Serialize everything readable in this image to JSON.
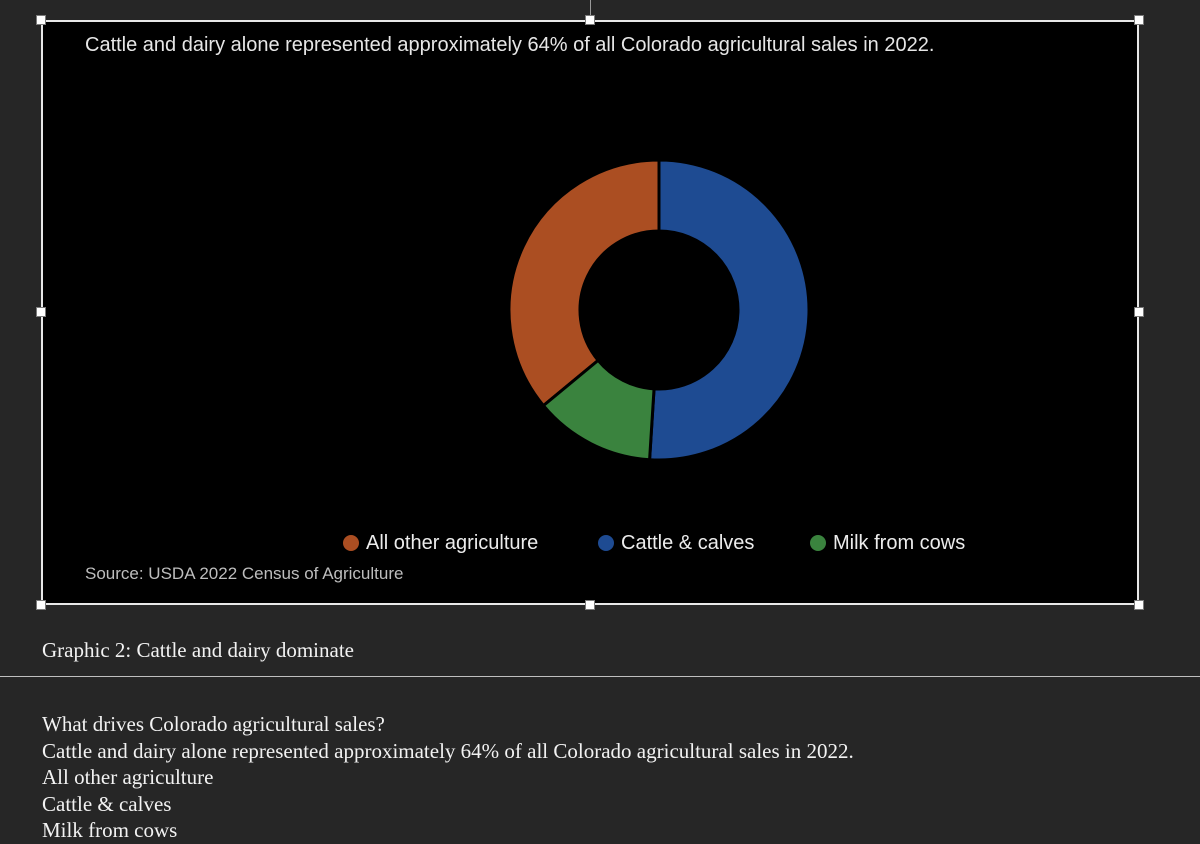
{
  "chart_block": {
    "heading": "Cattle and dairy alone represented approximately 64% of all Colorado agricultural sales in 2022.",
    "source": "Source: USDA 2022 Census of Agriculture"
  },
  "chart_data": {
    "type": "pie",
    "style": "donut",
    "title": "Cattle and dairy alone represented approximately 64% of all Colorado agricultural sales in 2022.",
    "categories": [
      "All other agriculture",
      "Cattle & calves",
      "Milk from cows"
    ],
    "values": [
      36,
      51,
      13
    ],
    "colors": [
      "#ab4e22",
      "#1e4b92",
      "#3a833e"
    ],
    "legend_position": "bottom",
    "legend": [
      {
        "label": "All other agriculture",
        "color": "#ab4e22"
      },
      {
        "label": "Cattle & calves",
        "color": "#1e4b92"
      },
      {
        "label": "Milk from cows",
        "color": "#3a833e"
      }
    ],
    "source": "Source: USDA 2022 Census of Agriculture"
  },
  "caption": "Graphic 2: Cattle and dairy dominate",
  "alt_text": {
    "lines": [
      "What drives Colorado agricultural sales?",
      "Cattle and dairy alone represented approximately 64% of all Colorado agricultural sales in 2022.",
      "All other agriculture",
      "Cattle & calves",
      "Milk from cows"
    ]
  }
}
